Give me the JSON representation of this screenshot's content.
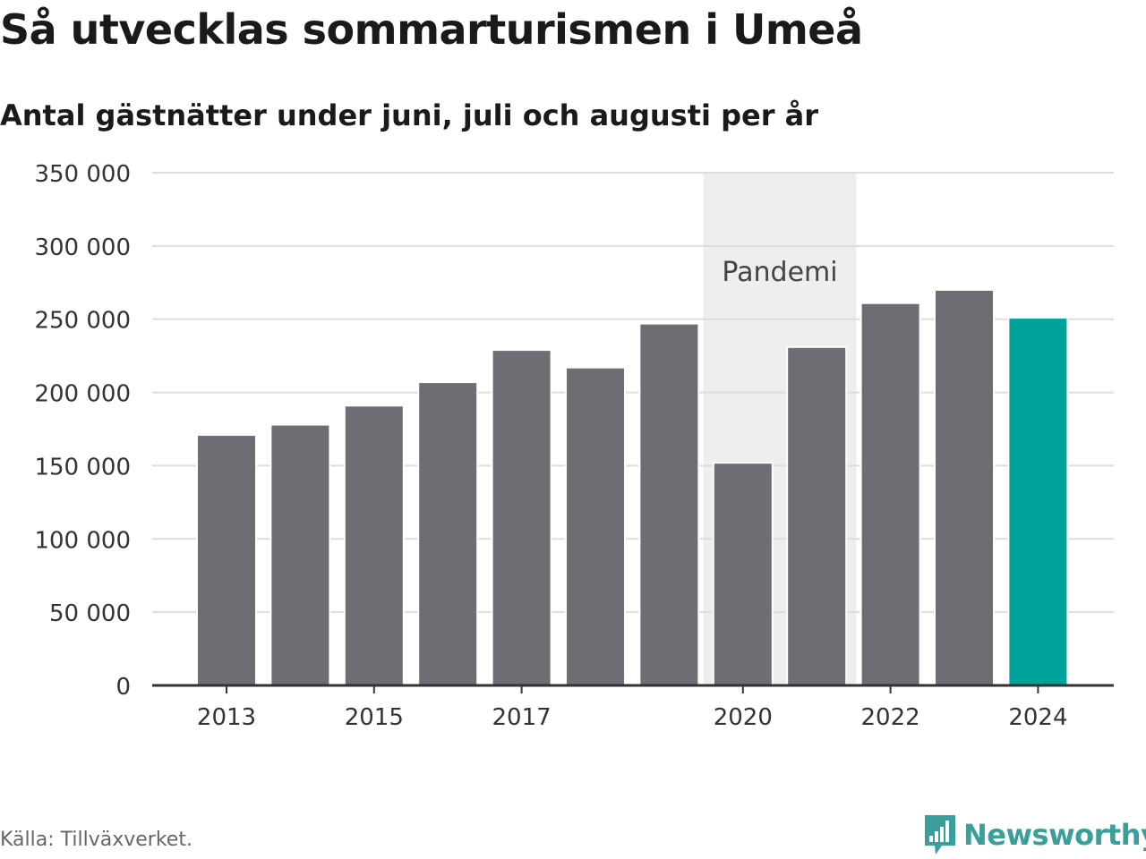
{
  "title": "Så utvecklas sommarturismen i Umeå",
  "subtitle": "Antal gästnätter under juni, juli och augusti per år",
  "source": "Källa: Tillväxverket.",
  "logo": {
    "text": "Newsworthy",
    "icon": "bar-chart-speech-bubble-icon",
    "color": "#3a9e9a"
  },
  "colors": {
    "bar": "#6e6d74",
    "highlight": "#00a39a",
    "shade": "#eeeeee",
    "grid": "#dddddd",
    "axis": "#333333"
  },
  "chart_data": {
    "type": "bar",
    "title": "Så utvecklas sommarturismen i Umeå",
    "subtitle": "Antal gästnätter under juni, juli och augusti per år",
    "xlabel": "",
    "ylabel": "",
    "categories": [
      2013,
      2014,
      2015,
      2016,
      2017,
      2018,
      2019,
      2020,
      2021,
      2022,
      2023,
      2024
    ],
    "values": [
      171000,
      178000,
      191000,
      207000,
      229000,
      217000,
      247000,
      152000,
      231000,
      261000,
      270000,
      251000
    ],
    "highlight_category": 2024,
    "ylim": [
      0,
      350000
    ],
    "yticks": [
      0,
      50000,
      100000,
      150000,
      200000,
      250000,
      300000,
      350000
    ],
    "ytick_labels": [
      "0",
      "50 000",
      "100 000",
      "150 000",
      "200 000",
      "250 000",
      "300 000",
      "350 000"
    ],
    "xticks": [
      2013,
      2015,
      2017,
      2020,
      2022,
      2024
    ],
    "xtick_labels": [
      "2013",
      "2015",
      "2017",
      "2020",
      "2022",
      "2024"
    ],
    "grid": true,
    "legend": "none",
    "annotations": [
      {
        "type": "shaded-range",
        "from": 2020,
        "to": 2021,
        "label": "Pandemi"
      }
    ]
  }
}
